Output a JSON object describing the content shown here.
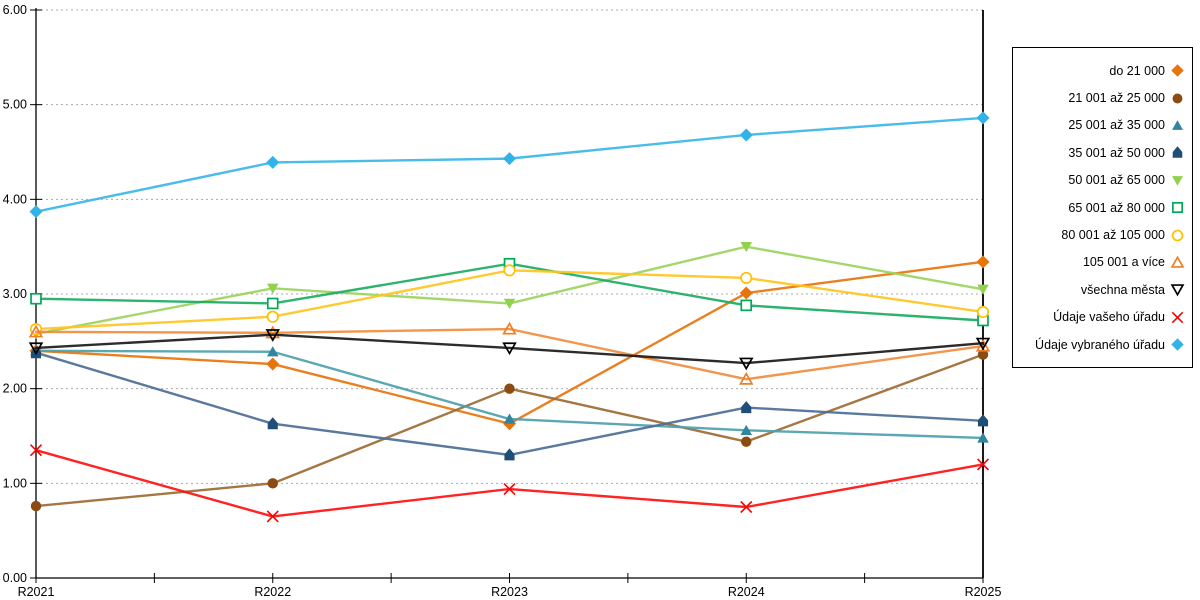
{
  "chart_data": {
    "type": "line",
    "title": "",
    "xlabel": "",
    "ylabel": "",
    "x_categories": [
      "R2021",
      "R2022",
      "R2023",
      "R2024",
      "R2025"
    ],
    "ylim": [
      0,
      6
    ],
    "y_tick_labels": [
      "0.00",
      "1.00",
      "2.00",
      "3.00",
      "4.00",
      "5.00",
      "6.00"
    ],
    "grid": "horizontal dotted gridlines",
    "legend_position": "right",
    "axis_color": "#000000",
    "gridline_color": "#aaaaaa",
    "series": [
      {
        "name": "do 21 000",
        "marker": "diamond",
        "filled": true,
        "color": "#E8740C",
        "line_color": "#E8740C",
        "values": [
          2.4,
          2.26,
          1.63,
          3.01,
          3.34
        ]
      },
      {
        "name": "21 001 až 25 000",
        "marker": "circle",
        "filled": true,
        "color": "#8C4B10",
        "line_color": "#9C6B33",
        "values": [
          0.76,
          1.0,
          2.0,
          1.44,
          2.36
        ]
      },
      {
        "name": "25 001 až 35 000",
        "marker": "triangle-up",
        "filled": true,
        "color": "#31859C",
        "line_color": "#4D9FAD",
        "values": [
          2.4,
          2.39,
          1.68,
          1.56,
          1.48
        ]
      },
      {
        "name": "35 001 až 50 000",
        "marker": "pentagon",
        "filled": true,
        "color": "#1F4E79",
        "line_color": "#4C6E96",
        "values": [
          2.38,
          1.63,
          1.3,
          1.8,
          1.66
        ]
      },
      {
        "name": "50 001 až 65 000",
        "marker": "triangle-down",
        "filled": true,
        "color": "#92D050",
        "line_color": "#9CD45E",
        "values": [
          2.58,
          3.06,
          2.9,
          3.5,
          3.05
        ]
      },
      {
        "name": "65 001 až 80 000",
        "marker": "square",
        "filled": false,
        "color": "#00A859",
        "line_color": "#1CAD62",
        "values": [
          2.95,
          2.9,
          3.32,
          2.88,
          2.72
        ]
      },
      {
        "name": "80 001 až 105 000",
        "marker": "circle",
        "filled": false,
        "color": "#FFC000",
        "line_color": "#FFC420",
        "values": [
          2.63,
          2.76,
          3.25,
          3.17,
          2.81
        ]
      },
      {
        "name": "105 001 a více",
        "marker": "triangle-up",
        "filled": false,
        "color": "#F07E26",
        "line_color": "#F28C3C",
        "values": [
          2.6,
          2.59,
          2.63,
          2.1,
          2.45
        ]
      },
      {
        "name": "všechna města",
        "marker": "triangle-down",
        "filled": false,
        "color": "#000000",
        "line_color": "#1A1A1A",
        "values": [
          2.43,
          2.57,
          2.43,
          2.27,
          2.48
        ]
      },
      {
        "name": "Údaje vašeho úřadu",
        "marker": "x",
        "filled": false,
        "color": "#FF0000",
        "line_color": "#FF1010",
        "values": [
          1.35,
          0.65,
          0.94,
          0.75,
          1.2
        ]
      },
      {
        "name": "Údaje vybraného úřadu",
        "marker": "diamond",
        "filled": true,
        "color": "#2FB3E8",
        "line_color": "#3AB6E8",
        "values": [
          3.87,
          4.39,
          4.43,
          4.68,
          4.86
        ]
      }
    ]
  }
}
